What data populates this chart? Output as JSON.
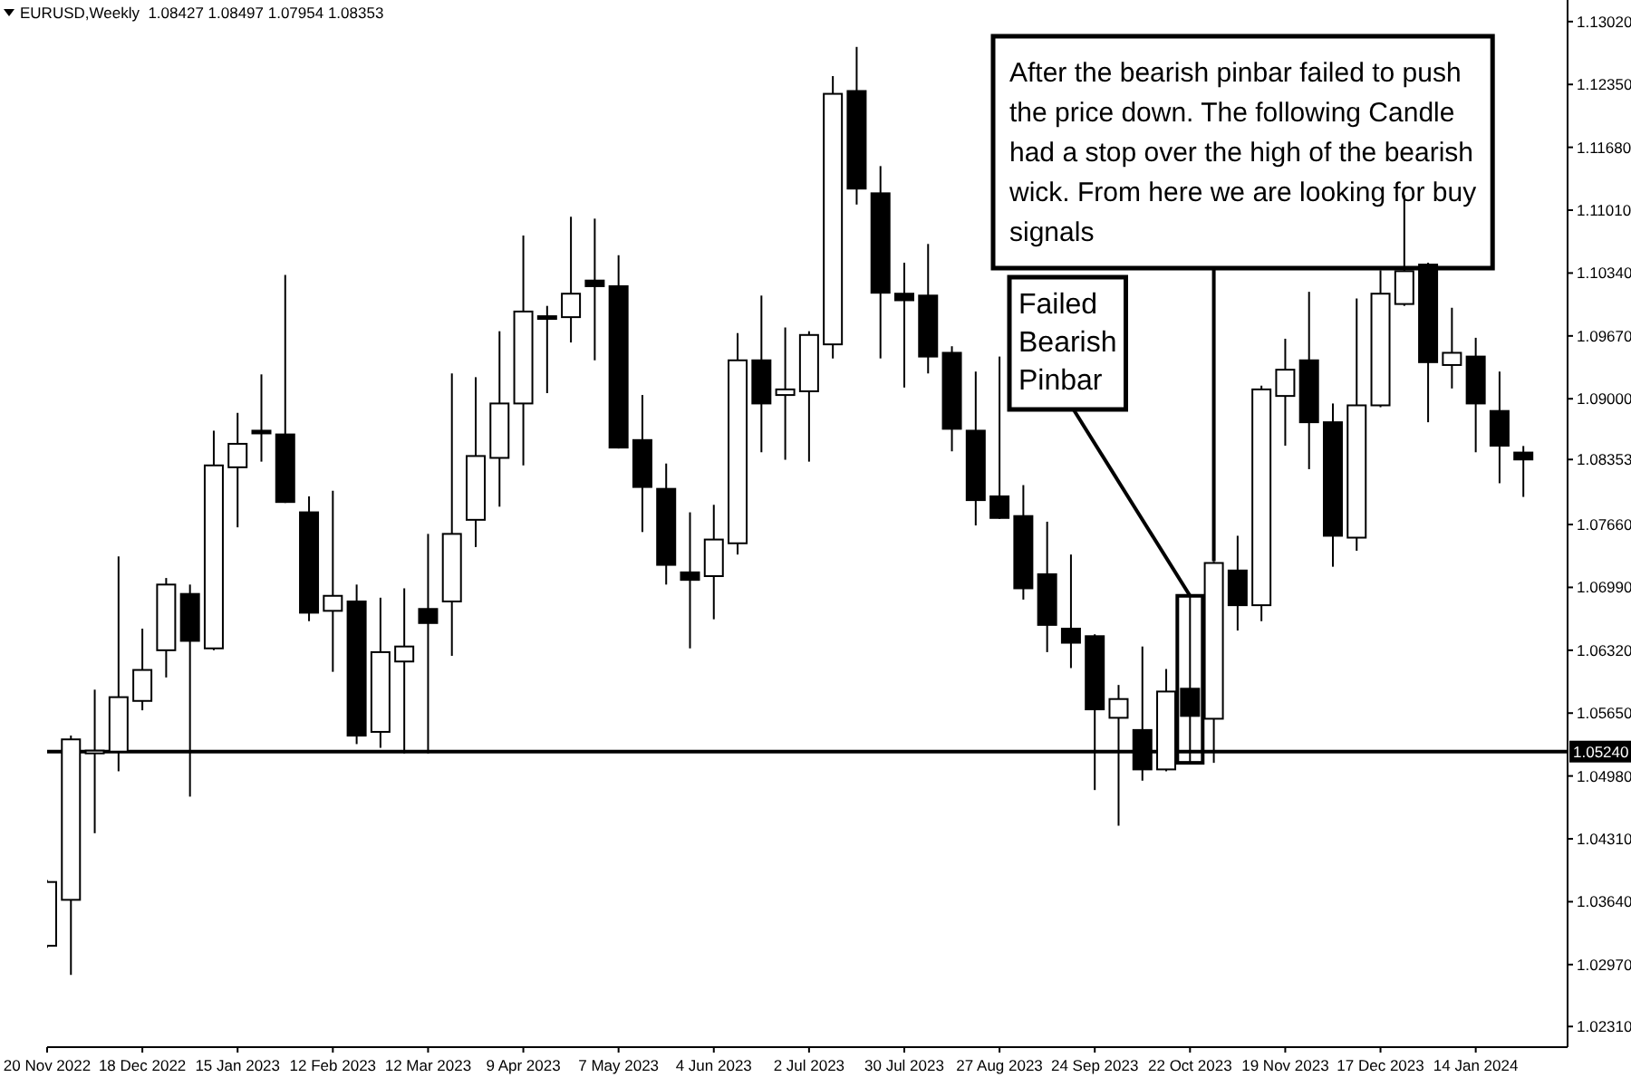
{
  "chart_data": {
    "type": "candlestick",
    "title": "EURUSD,Weekly  1.08427 1.08497 1.07954 1.08353",
    "x": [
      "2022-11-20",
      "2022-11-27",
      "2022-12-04",
      "2022-12-11",
      "2022-12-18",
      "2022-12-25",
      "2023-01-01",
      "2023-01-08",
      "2023-01-15",
      "2023-01-22",
      "2023-01-29",
      "2023-02-05",
      "2023-02-12",
      "2023-02-19",
      "2023-02-26",
      "2023-03-05",
      "2023-03-12",
      "2023-03-19",
      "2023-03-26",
      "2023-04-02",
      "2023-04-09",
      "2023-04-16",
      "2023-04-23",
      "2023-04-30",
      "2023-05-07",
      "2023-05-14",
      "2023-05-21",
      "2023-05-28",
      "2023-06-04",
      "2023-06-11",
      "2023-06-18",
      "2023-06-25",
      "2023-07-02",
      "2023-07-09",
      "2023-07-16",
      "2023-07-23",
      "2023-07-30",
      "2023-08-06",
      "2023-08-13",
      "2023-08-20",
      "2023-08-27",
      "2023-09-03",
      "2023-09-10",
      "2023-09-17",
      "2023-09-24",
      "2023-10-01",
      "2023-10-08",
      "2023-10-15",
      "2023-10-22",
      "2023-10-29",
      "2023-11-05",
      "2023-11-12",
      "2023-11-19",
      "2023-11-26",
      "2023-12-03",
      "2023-12-10",
      "2023-12-17",
      "2023-12-24",
      "2023-12-31",
      "2024-01-07",
      "2024-01-14",
      "2024-01-21",
      "2024-01-28"
    ],
    "ohlc": [
      [
        1.0317,
        1.0387,
        1.0315,
        1.0385
      ],
      [
        1.0366,
        1.0541,
        1.0286,
        1.0537
      ],
      [
        1.0524,
        1.059,
        1.0437,
        1.0525
      ],
      [
        1.0524,
        1.0732,
        1.0503,
        1.0582
      ],
      [
        1.0578,
        1.0655,
        1.0568,
        1.0611
      ],
      [
        1.0632,
        1.0709,
        1.0603,
        1.0702
      ],
      [
        1.0692,
        1.0702,
        1.0476,
        1.0642
      ],
      [
        1.0634,
        1.0866,
        1.0632,
        1.0829
      ],
      [
        1.0827,
        1.0885,
        1.0763,
        1.0852
      ],
      [
        1.0866,
        1.0926,
        1.0833,
        1.0865
      ],
      [
        1.0862,
        1.1032,
        1.0789,
        1.079
      ],
      [
        1.0779,
        1.0796,
        1.0663,
        1.0672
      ],
      [
        1.0674,
        1.0802,
        1.0609,
        1.069
      ],
      [
        1.0684,
        1.0702,
        1.0532,
        1.0541
      ],
      [
        1.0545,
        1.0688,
        1.0528,
        1.063
      ],
      [
        1.062,
        1.0698,
        1.0522,
        1.0636
      ],
      [
        1.0676,
        1.0756,
        1.0522,
        1.0661
      ],
      [
        1.0684,
        1.0927,
        1.0626,
        1.0756
      ],
      [
        1.0771,
        1.0923,
        1.0742,
        1.0839
      ],
      [
        1.0837,
        1.0972,
        1.0785,
        1.0895
      ],
      [
        1.0895,
        1.1074,
        1.0829,
        1.0993
      ],
      [
        1.0988,
        1.0999,
        1.0906,
        1.0987
      ],
      [
        1.0987,
        1.1094,
        1.096,
        1.1012
      ],
      [
        1.1026,
        1.1092,
        1.0941,
        1.102
      ],
      [
        1.102,
        1.1053,
        1.0847,
        1.0848
      ],
      [
        1.0856,
        1.0904,
        1.0758,
        1.0806
      ],
      [
        1.0804,
        1.0831,
        1.0702,
        1.0723
      ],
      [
        1.0715,
        1.0779,
        1.0634,
        1.0707
      ],
      [
        1.0711,
        1.0787,
        1.0665,
        1.075
      ],
      [
        1.0746,
        1.097,
        1.0734,
        1.0941
      ],
      [
        1.0941,
        1.101,
        1.0843,
        1.0895
      ],
      [
        1.0904,
        1.0976,
        1.0835,
        1.091
      ],
      [
        1.0908,
        1.0972,
        1.0833,
        1.0968
      ],
      [
        1.0958,
        1.1244,
        1.0943,
        1.1225
      ],
      [
        1.1228,
        1.1275,
        1.1107,
        1.1124
      ],
      [
        1.1119,
        1.1148,
        1.0943,
        1.1013
      ],
      [
        1.1012,
        1.1045,
        1.0912,
        1.1005
      ],
      [
        1.101,
        1.1065,
        1.0927,
        1.0945
      ],
      [
        1.0949,
        1.0956,
        1.0844,
        1.0868
      ],
      [
        1.0866,
        1.0929,
        1.0765,
        1.0792
      ],
      [
        1.0796,
        1.0945,
        1.0772,
        1.0773
      ],
      [
        1.0775,
        1.0808,
        1.0686,
        1.0698
      ],
      [
        1.0713,
        1.0769,
        1.063,
        1.0659
      ],
      [
        1.0655,
        1.0734,
        1.0613,
        1.064
      ],
      [
        1.0647,
        1.0649,
        1.0483,
        1.0569
      ],
      [
        1.056,
        1.0595,
        1.0445,
        1.058
      ],
      [
        1.0547,
        1.0636,
        1.0493,
        1.0505
      ],
      [
        1.0505,
        1.0612,
        1.0503,
        1.0588
      ],
      [
        1.0591,
        1.069,
        1.0512,
        1.0562
      ],
      [
        1.0559,
        1.0727,
        1.0512,
        1.0725
      ],
      [
        1.0717,
        1.0754,
        1.0653,
        1.068
      ],
      [
        1.068,
        1.0914,
        1.0663,
        1.091
      ],
      [
        1.0903,
        1.0964,
        1.085,
        1.0931
      ],
      [
        1.0941,
        1.1014,
        1.0825,
        1.0875
      ],
      [
        1.0875,
        1.0895,
        1.0721,
        1.0754
      ],
      [
        1.0752,
        1.1007,
        1.0738,
        1.0893
      ],
      [
        1.0893,
        1.1037,
        1.0891,
        1.1012
      ],
      [
        1.1001,
        1.1117,
        1.0999,
        1.1036
      ],
      [
        1.1043,
        1.1045,
        1.0875,
        1.0939
      ],
      [
        1.0936,
        1.0997,
        1.0911,
        1.0949
      ],
      [
        1.0945,
        1.0965,
        1.0843,
        1.0895
      ],
      [
        1.0887,
        1.0929,
        1.081,
        1.085
      ],
      [
        1.08427,
        1.08497,
        1.07954,
        1.08353
      ]
    ],
    "xlim": [
      "2022-11-20",
      "2024-02-10"
    ],
    "xticks": [
      {
        "value": "2022-11-20",
        "label": "20 Nov 2022"
      },
      {
        "value": "2022-12-18",
        "label": "18 Dec 2022"
      },
      {
        "value": "2023-01-15",
        "label": "15 Jan 2023"
      },
      {
        "value": "2023-02-12",
        "label": "12 Feb 2023"
      },
      {
        "value": "2023-03-12",
        "label": "12 Mar 2023"
      },
      {
        "value": "2023-04-09",
        "label": "9 Apr 2023"
      },
      {
        "value": "2023-05-07",
        "label": "7 May 2023"
      },
      {
        "value": "2023-06-04",
        "label": "4 Jun 2023"
      },
      {
        "value": "2023-07-02",
        "label": "2 Jul 2023"
      },
      {
        "value": "2023-07-30",
        "label": "30 Jul 2023"
      },
      {
        "value": "2023-08-27",
        "label": "27 Aug 2023"
      },
      {
        "value": "2023-09-24",
        "label": "24 Sep 2023"
      },
      {
        "value": "2023-10-22",
        "label": "22 Oct 2023"
      },
      {
        "value": "2023-11-19",
        "label": "19 Nov 2023"
      },
      {
        "value": "2023-12-17",
        "label": "17 Dec 2023"
      },
      {
        "value": "2024-01-14",
        "label": "14 Jan 2024"
      }
    ],
    "ylim": [
      1.0209,
      1.1325
    ],
    "yticks": [
      {
        "value": 1.1302,
        "label": "1.13020"
      },
      {
        "value": 1.1235,
        "label": "1.12350"
      },
      {
        "value": 1.1168,
        "label": "1.11680"
      },
      {
        "value": 1.1101,
        "label": "1.11010"
      },
      {
        "value": 1.1034,
        "label": "1.10340"
      },
      {
        "value": 1.0967,
        "label": "1.09670"
      },
      {
        "value": 1.09,
        "label": "1.09000"
      },
      {
        "value": 1.08353,
        "label": "1.08353"
      },
      {
        "value": 1.0766,
        "label": "1.07660"
      },
      {
        "value": 1.0699,
        "label": "1.06990"
      },
      {
        "value": 1.0632,
        "label": "1.06320"
      },
      {
        "value": 1.0565,
        "label": "1.05650"
      },
      {
        "value": 1.0498,
        "label": "1.04980"
      },
      {
        "value": 1.0431,
        "label": "1.04310"
      },
      {
        "value": 1.0364,
        "label": "1.03640"
      },
      {
        "value": 1.0297,
        "label": "1.02970"
      },
      {
        "value": 1.0231,
        "label": "1.02310"
      }
    ],
    "ref_lines": [
      {
        "axis": "y",
        "value": 1.0524,
        "label": "1.05240",
        "color": "#000000"
      }
    ],
    "annotations": [
      {
        "text": "Failed Bearish Pinbar",
        "x": "2023-10-22",
        "y": 1.069
      },
      {
        "text": "After the bearish pinbar failed to push the price down. The following Candle had a stop over the high of the bearish wick. From here we are looking for buy signals",
        "x": "2023-10-29",
        "y": 1.0727
      }
    ],
    "grid": false
  }
}
